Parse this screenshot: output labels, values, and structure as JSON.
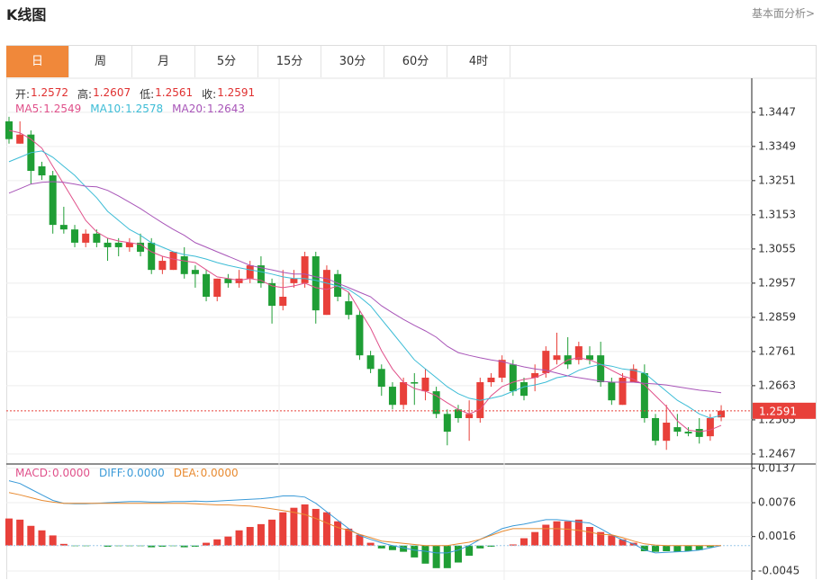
{
  "header": {
    "title": "K线图",
    "link": "基本面分析>"
  },
  "tabs": [
    "日",
    "周",
    "月",
    "5分",
    "15分",
    "30分",
    "60分",
    "4时"
  ],
  "active_tab": 0,
  "chart_data": [
    {
      "type": "candlestick",
      "up_color": "#e8403a",
      "down_color": "#1f9e35",
      "readout_labels": [
        "开:",
        "高:",
        "低:",
        "收:"
      ],
      "open": [
        1.3421,
        1.3357,
        1.3383,
        1.3292,
        1.3266,
        1.3124,
        1.3111,
        1.3073,
        1.3099,
        1.3073,
        1.3073,
        1.306,
        1.3073,
        1.3073,
        1.2995,
        1.2995,
        1.3034,
        1.2995,
        1.2983,
        1.2918,
        1.297,
        1.2957,
        1.297,
        1.3008,
        1.2957,
        1.2892,
        1.2957,
        1.2957,
        1.3034,
        1.2866,
        1.2983,
        1.2905,
        1.2866,
        1.275,
        1.2711,
        1.266,
        1.2608,
        1.2673,
        1.2647,
        1.2647,
        1.2582,
        1.2595,
        1.257,
        1.257,
        1.2673,
        1.2686,
        1.2724,
        1.2673,
        1.2686,
        1.2699,
        1.2737,
        1.275,
        1.2737,
        1.275,
        1.275,
        1.2673,
        1.2608,
        1.2673,
        1.2699,
        1.257,
        1.2505,
        1.2544,
        1.2531,
        1.2539,
        1.2518,
        1.2572
      ],
      "high": [
        1.3434,
        1.3421,
        1.3395,
        1.3305,
        1.3279,
        1.3176,
        1.3124,
        1.3111,
        1.3111,
        1.3086,
        1.3086,
        1.3086,
        1.3099,
        1.3086,
        1.3034,
        1.3047,
        1.306,
        1.3008,
        1.2995,
        1.297,
        1.2983,
        1.2995,
        1.3021,
        1.3034,
        1.297,
        1.2995,
        1.2995,
        1.3047,
        1.3047,
        1.3008,
        1.2995,
        1.2931,
        1.2879,
        1.2763,
        1.2724,
        1.2673,
        1.2686,
        1.2699,
        1.2711,
        1.266,
        1.2595,
        1.2608,
        1.2621,
        1.2686,
        1.2699,
        1.275,
        1.2737,
        1.2686,
        1.2724,
        1.2776,
        1.2815,
        1.2802,
        1.2789,
        1.2776,
        1.2789,
        1.2686,
        1.2699,
        1.2724,
        1.2724,
        1.2582,
        1.2608,
        1.2582,
        1.2544,
        1.257,
        1.2582,
        1.2607
      ],
      "low": [
        1.3357,
        1.3357,
        1.3241,
        1.3253,
        1.3099,
        1.3099,
        1.306,
        1.306,
        1.306,
        1.3021,
        1.3034,
        1.3047,
        1.3034,
        1.2983,
        1.2983,
        1.2995,
        1.297,
        1.2944,
        1.2905,
        1.2905,
        1.2944,
        1.2944,
        1.2957,
        1.2944,
        1.2841,
        1.2879,
        1.2944,
        1.2944,
        1.2841,
        1.2866,
        1.2905,
        1.2853,
        1.2737,
        1.2699,
        1.2634,
        1.2595,
        1.2595,
        1.2608,
        1.2621,
        1.257,
        1.2492,
        1.2557,
        1.2505,
        1.2557,
        1.266,
        1.2673,
        1.2634,
        1.2621,
        1.2647,
        1.2686,
        1.2724,
        1.2711,
        1.2724,
        1.2724,
        1.266,
        1.2608,
        1.2608,
        1.2673,
        1.2557,
        1.2492,
        1.2479,
        1.2518,
        1.2518,
        1.2497,
        1.2505,
        1.2561
      ],
      "close": [
        1.337,
        1.3383,
        1.3279,
        1.3266,
        1.3124,
        1.3111,
        1.3073,
        1.3099,
        1.3073,
        1.306,
        1.306,
        1.3073,
        1.3047,
        1.2995,
        1.3021,
        1.3047,
        1.2983,
        1.2983,
        1.2918,
        1.297,
        1.2957,
        1.297,
        1.3008,
        1.2957,
        1.2892,
        1.2918,
        1.297,
        1.3034,
        1.2879,
        1.2995,
        1.2918,
        1.2866,
        1.275,
        1.2711,
        1.266,
        1.2608,
        1.2673,
        1.2669,
        1.2686,
        1.2582,
        1.2531,
        1.257,
        1.2582,
        1.2673,
        1.2686,
        1.2737,
        1.2647,
        1.2634,
        1.2699,
        1.2763,
        1.275,
        1.2724,
        1.2776,
        1.2737,
        1.2673,
        1.2621,
        1.2686,
        1.2711,
        1.257,
        1.2505,
        1.2557,
        1.2531,
        1.2526,
        1.2516,
        1.257,
        1.2591
      ],
      "series": [
        {
          "name": "MA5:",
          "color": "#e0508a",
          "values": [
            1.3395,
            1.3388,
            1.337,
            1.3344,
            1.3292,
            1.3241,
            1.3189,
            1.3137,
            1.3104,
            1.3086,
            1.3078,
            1.3073,
            1.3068,
            1.3047,
            1.3034,
            1.3026,
            1.3021,
            1.3016,
            1.2995,
            1.2975,
            1.297,
            1.2965,
            1.297,
            1.2965,
            1.2949,
            1.2944,
            1.2949,
            1.2957,
            1.2944,
            1.2939,
            1.2949,
            1.2931,
            1.2879,
            1.2828,
            1.2763,
            1.2711,
            1.2673,
            1.2655,
            1.2647,
            1.2634,
            1.2614,
            1.2595,
            1.2582,
            1.2595,
            1.2634,
            1.266,
            1.2673,
            1.2681,
            1.2686,
            1.2699,
            1.2717,
            1.2737,
            1.2743,
            1.2737,
            1.2724,
            1.2707,
            1.2691,
            1.2681,
            1.2665,
            1.2634,
            1.2603,
            1.2562,
            1.2536,
            1.2531,
            1.2536,
            1.2549
          ]
        },
        {
          "name": "MA10:",
          "color": "#3cbcd6",
          "values": [
            1.3305,
            1.3318,
            1.3331,
            1.3336,
            1.3318,
            1.3292,
            1.3266,
            1.3233,
            1.3202,
            1.3163,
            1.3137,
            1.3111,
            1.3094,
            1.3073,
            1.306,
            1.3047,
            1.3039,
            1.3034,
            1.3026,
            1.3016,
            1.3008,
            1.3001,
            1.2995,
            1.299,
            1.2983,
            1.2975,
            1.297,
            1.297,
            1.2965,
            1.2957,
            1.2949,
            1.2939,
            1.2918,
            1.2892,
            1.2853,
            1.2815,
            1.2776,
            1.2737,
            1.2711,
            1.2686,
            1.266,
            1.264,
            1.2627,
            1.2621,
            1.2627,
            1.2634,
            1.2647,
            1.266,
            1.2665,
            1.2673,
            1.2686,
            1.2691,
            1.2707,
            1.2717,
            1.2724,
            1.2719,
            1.2711,
            1.2707,
            1.2699,
            1.2673,
            1.2647,
            1.2621,
            1.2603,
            1.2582,
            1.257,
            1.2578
          ]
        },
        {
          "name": "MA20:",
          "color": "#a855b8",
          "values": [
            1.3215,
            1.3228,
            1.3241,
            1.3246,
            1.3248,
            1.3246,
            1.3241,
            1.3235,
            1.3233,
            1.3223,
            1.3207,
            1.3189,
            1.3171,
            1.315,
            1.313,
            1.3111,
            1.3094,
            1.3073,
            1.306,
            1.3047,
            1.3034,
            1.3021,
            1.3008,
            1.3001,
            1.2995,
            1.2988,
            1.2983,
            1.2983,
            1.2975,
            1.297,
            1.2957,
            1.2944,
            1.2931,
            1.2918,
            1.2892,
            1.2872,
            1.2853,
            1.2836,
            1.282,
            1.2802,
            1.2776,
            1.2758,
            1.275,
            1.2743,
            1.2737,
            1.2732,
            1.2724,
            1.2717,
            1.2711,
            1.2707,
            1.2699,
            1.2691,
            1.2686,
            1.2681,
            1.2676,
            1.2673,
            1.2673,
            1.2673,
            1.267,
            1.2668,
            1.2665,
            1.266,
            1.2655,
            1.265,
            1.2647,
            1.2643
          ]
        }
      ],
      "ylim": [
        1.2441,
        1.3542
      ],
      "yticks": [
        1.3447,
        1.3349,
        1.3251,
        1.3153,
        1.3055,
        1.2957,
        1.2859,
        1.2761,
        1.2663,
        1.2565,
        1.2467
      ],
      "grid": true
    },
    {
      "type": "macd",
      "readout": [
        {
          "name": "MACD:",
          "label": "0.0000",
          "color": "#e0508a"
        },
        {
          "name": "DIFF:",
          "label": "0.0000",
          "color": "#3a9ad8"
        },
        {
          "name": "DEA:",
          "label": "0.0000",
          "color": "#e88a30"
        }
      ],
      "up_color": "#e8403a",
      "down_color": "#1f9e35",
      "histogram": [
        0.0048,
        0.0046,
        0.0035,
        0.0027,
        0.0018,
        0.0003,
        -0.0001,
        -0.0001,
        0,
        -0.0002,
        -0.0001,
        -0.0001,
        -0.0001,
        -0.0003,
        -0.0002,
        -0.0001,
        -0.0003,
        -0.0002,
        0.0005,
        0.0011,
        0.0016,
        0.0027,
        0.0033,
        0.0038,
        0.0046,
        0.0059,
        0.0067,
        0.0073,
        0.0065,
        0.0059,
        0.0043,
        0.003,
        0.0019,
        0.0005,
        -0.0005,
        -0.0008,
        -0.0011,
        -0.0021,
        -0.0032,
        -0.004,
        -0.004,
        -0.003,
        -0.0018,
        -0.0005,
        -0.0002,
        0,
        0.0002,
        0.0013,
        0.0024,
        0.0037,
        0.0043,
        0.0043,
        0.0046,
        0.0033,
        0.0024,
        0.0018,
        0.0011,
        0.0005,
        -0.001,
        -0.0011,
        -0.001,
        -0.0011,
        -0.001,
        -0.0008,
        -0.0003,
        0
      ],
      "series": [
        {
          "name": "DIFF",
          "color": "#3a9ad8",
          "values": [
            0.0115,
            0.011,
            0.01,
            0.009,
            0.008,
            0.0075,
            0.0074,
            0.0074,
            0.0075,
            0.0076,
            0.0077,
            0.0078,
            0.0078,
            0.0077,
            0.0077,
            0.0078,
            0.0078,
            0.0079,
            0.0078,
            0.0079,
            0.008,
            0.0081,
            0.0082,
            0.0083,
            0.0085,
            0.0088,
            0.0088,
            0.0086,
            0.0075,
            0.006,
            0.0045,
            0.003,
            0.0018,
            0.0011,
            0.0005,
            0,
            -0.0004,
            -0.0008,
            -0.001,
            -0.0013,
            -0.0013,
            -0.0008,
            0,
            0.0011,
            0.002,
            0.003,
            0.0035,
            0.0038,
            0.0042,
            0.0046,
            0.0046,
            0.0044,
            0.0042,
            0.004,
            0.003,
            0.0019,
            0.001,
            0.0003,
            -0.0008,
            -0.0013,
            -0.0012,
            -0.0011,
            -0.001,
            -0.0008,
            -0.0004,
            0
          ]
        },
        {
          "name": "DEA",
          "color": "#e88a30",
          "values": [
            0.0094,
            0.009,
            0.0085,
            0.008,
            0.0077,
            0.0075,
            0.0075,
            0.0075,
            0.0075,
            0.0075,
            0.0075,
            0.0075,
            0.0075,
            0.0075,
            0.0075,
            0.0075,
            0.0075,
            0.0074,
            0.0073,
            0.0072,
            0.0072,
            0.0071,
            0.007,
            0.0068,
            0.0065,
            0.0062,
            0.0059,
            0.0055,
            0.0048,
            0.004,
            0.0032,
            0.0027,
            0.002,
            0.0014,
            0.0008,
            0.0006,
            0.0004,
            0.0002,
            0,
            0,
            0,
            0.0003,
            0.0006,
            0.0011,
            0.0018,
            0.0025,
            0.003,
            0.003,
            0.003,
            0.003,
            0.003,
            0.0029,
            0.0027,
            0.0024,
            0.002,
            0.0019,
            0.0014,
            0.0008,
            0.0003,
            0.0001,
            0,
            0,
            0,
            0,
            0,
            0
          ]
        }
      ],
      "ylim": [
        -0.0061,
        0.0143
      ],
      "yticks": [
        0.0137,
        0.0076,
        0.0016,
        -0.0045
      ],
      "grid": true
    }
  ]
}
